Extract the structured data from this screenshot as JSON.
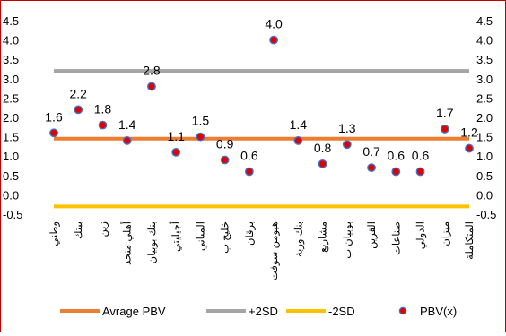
{
  "chart_data": {
    "type": "line",
    "categories": [
      "وطني",
      "بيتك",
      "زين",
      "أهلي متحد",
      "بنك بوبيان",
      "أجيليتي",
      "المباني",
      "خليج ب",
      "برقان",
      "هيومن سوفت",
      "بنك وربة",
      "مشاريع",
      "بوبيان ب",
      "القرين",
      "صناعات",
      "الدولي",
      "ميزان",
      "المتكاملة"
    ],
    "series": [
      {
        "name": "Avrage PBV",
        "type": "line",
        "color": "#ed7d31",
        "values": [
          1.45,
          1.45,
          1.45,
          1.45,
          1.45,
          1.45,
          1.45,
          1.45,
          1.45,
          1.45,
          1.45,
          1.45,
          1.45,
          1.45,
          1.45,
          1.45,
          1.45,
          1.45
        ]
      },
      {
        "name": "+2SD",
        "type": "line",
        "color": "#a5a5a5",
        "values": [
          3.2,
          3.2,
          3.2,
          3.2,
          3.2,
          3.2,
          3.2,
          3.2,
          3.2,
          3.2,
          3.2,
          3.2,
          3.2,
          3.2,
          3.2,
          3.2,
          3.2,
          3.2
        ]
      },
      {
        "name": "-2SD",
        "type": "line",
        "color": "#ffc000",
        "values": [
          -0.3,
          -0.3,
          -0.3,
          -0.3,
          -0.3,
          -0.3,
          -0.3,
          -0.3,
          -0.3,
          -0.3,
          -0.3,
          -0.3,
          -0.3,
          -0.3,
          -0.3,
          -0.3,
          -0.3,
          -0.3
        ]
      },
      {
        "name": "PBV(x)",
        "type": "scatter",
        "color": "#e00000",
        "edge_color": "#4472c4",
        "values": [
          1.6,
          2.2,
          1.8,
          1.4,
          2.8,
          1.1,
          1.5,
          0.9,
          0.6,
          4.0,
          1.4,
          0.8,
          1.3,
          0.7,
          0.6,
          0.6,
          1.7,
          1.2
        ],
        "labels": [
          "1.6",
          "2.2",
          "1.8",
          "1.4",
          "2.8",
          "1.1",
          "1.5",
          "0.9",
          "0.6",
          "4.0",
          "1.4",
          "0.8",
          "1.3",
          "0.7",
          "0.6",
          "0.6",
          "1.7",
          "1.2"
        ]
      }
    ],
    "ylim": [
      -0.5,
      4.5
    ],
    "y_ticks": [
      "-0.5",
      "0.0",
      "0.5",
      "1.0",
      "1.5",
      "2.0",
      "2.5",
      "3.0",
      "3.5",
      "4.0",
      "4.5"
    ],
    "y_axis_both_sides": true,
    "grid": false,
    "legend_position": "bottom",
    "border_color": "#c00000"
  }
}
